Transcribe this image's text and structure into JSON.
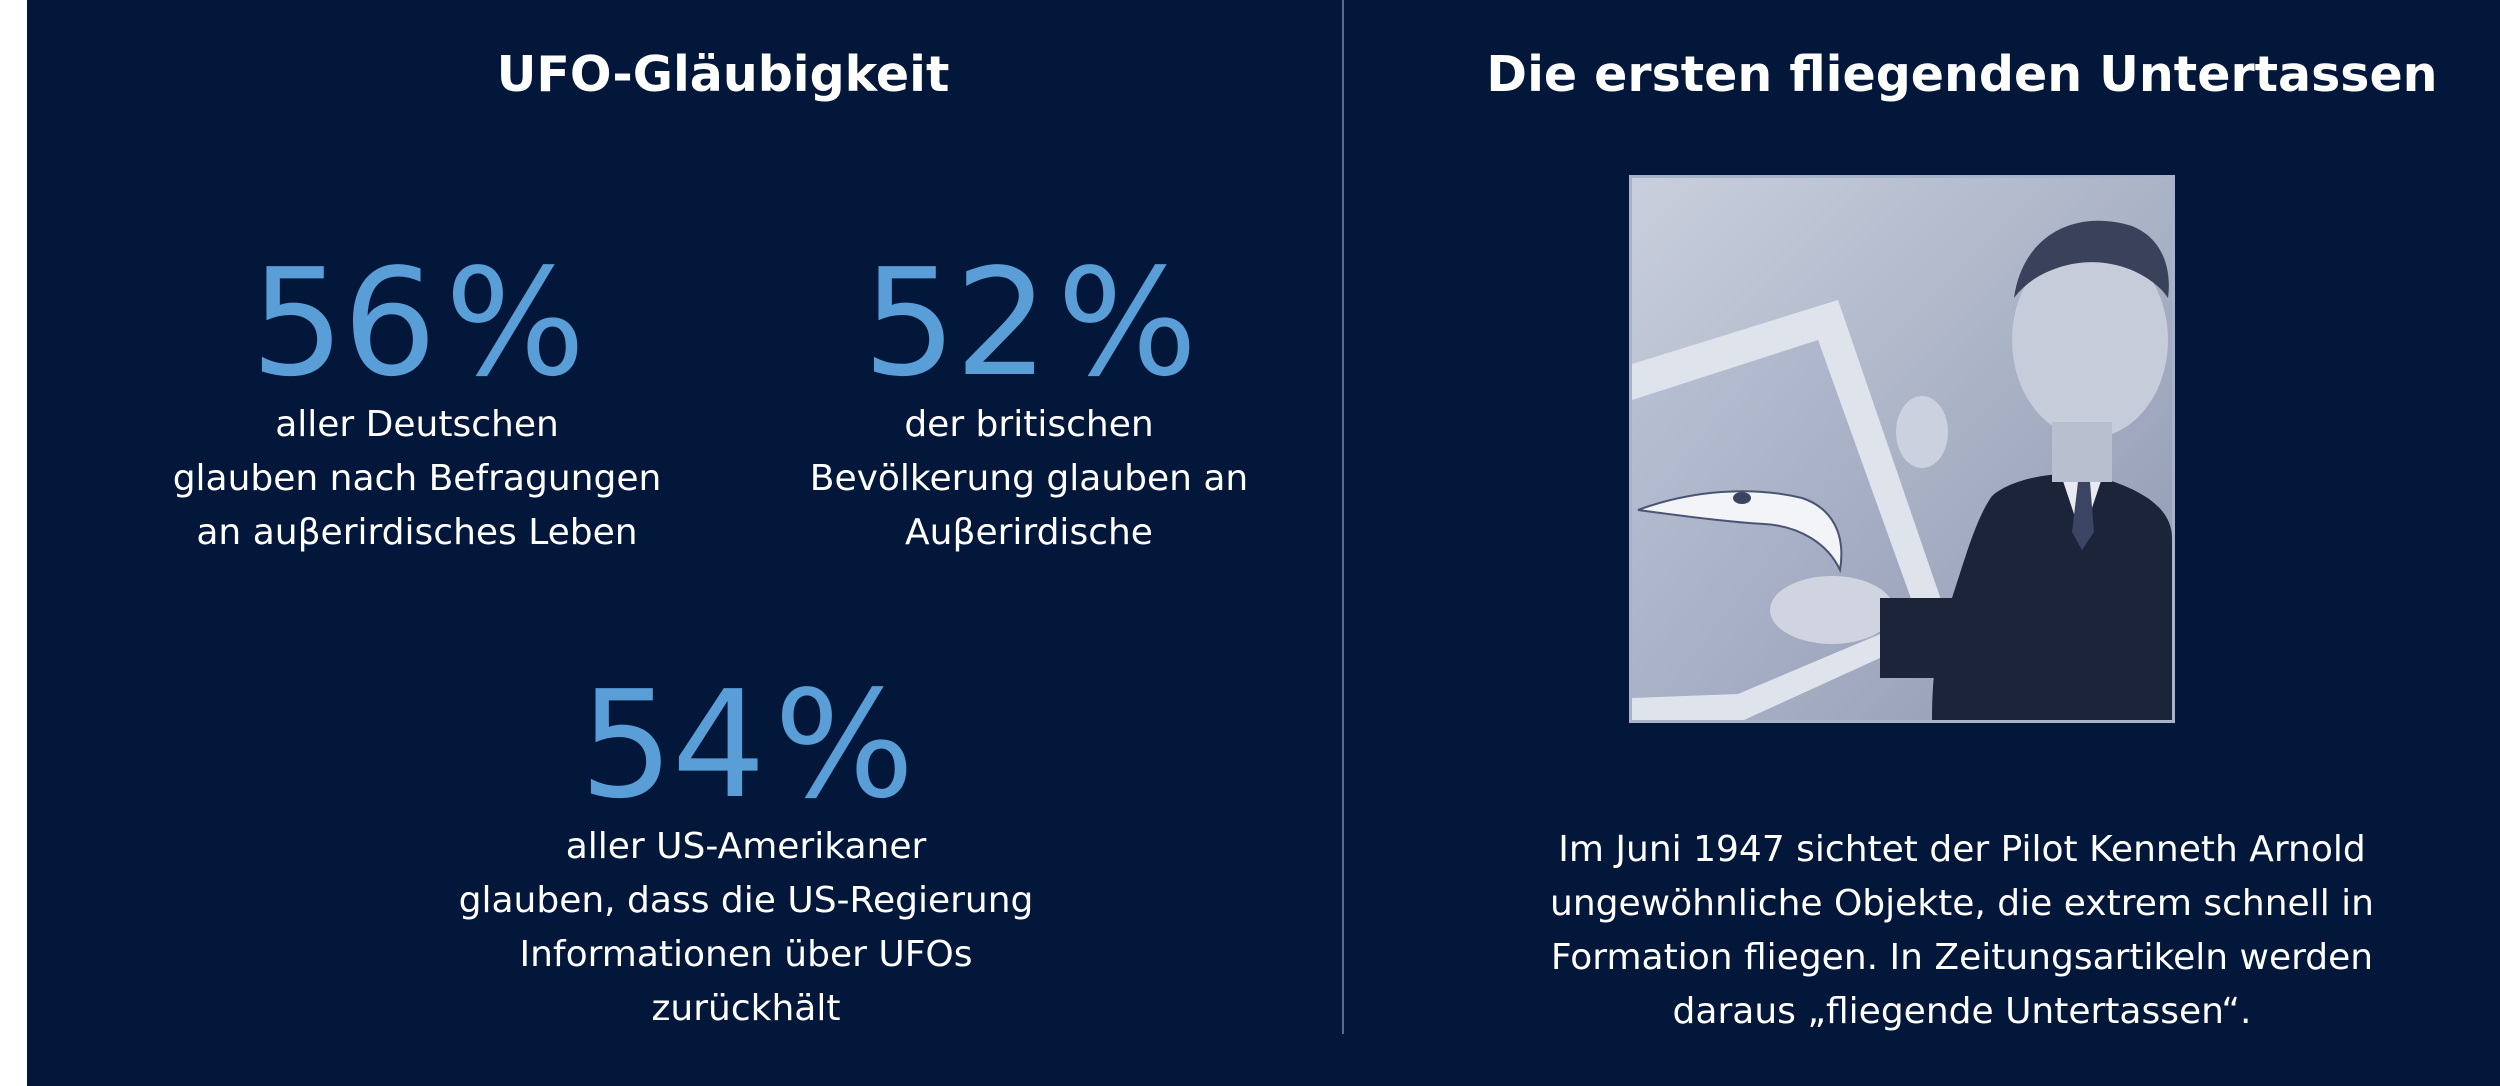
{
  "left": {
    "title": "UFO-Gläubigkeit",
    "stats": [
      {
        "number": "56",
        "unit": "%",
        "lines": [
          "aller Deutschen",
          "glauben nach Befragungen",
          "an auβerirdisches Leben"
        ]
      },
      {
        "number": "52",
        "unit": "%",
        "lines": [
          "der britischen",
          "Bevölkerung glauben an",
          "Auβerirdische"
        ]
      },
      {
        "number": "54",
        "unit": "%",
        "lines": [
          "aller US-Amerikaner",
          "glauben, dass die US-Regierung",
          "Informationen über UFOs",
          "zurückhält"
        ]
      }
    ]
  },
  "right": {
    "title": "Die ersten fliegenden Untertassen",
    "caption": [
      "Im Juni 1947 sichtet der Pilot Kenneth Arnold",
      "ungewöhnliche Objekte, die extrem schnell in",
      "Formation fliegen. In Zeitungsartikeln werden",
      "daraus „fliegende Untertassen“."
    ]
  },
  "colors": {
    "background": "#02173a",
    "accent": "#5a9ed8",
    "text": "#ffffff"
  }
}
